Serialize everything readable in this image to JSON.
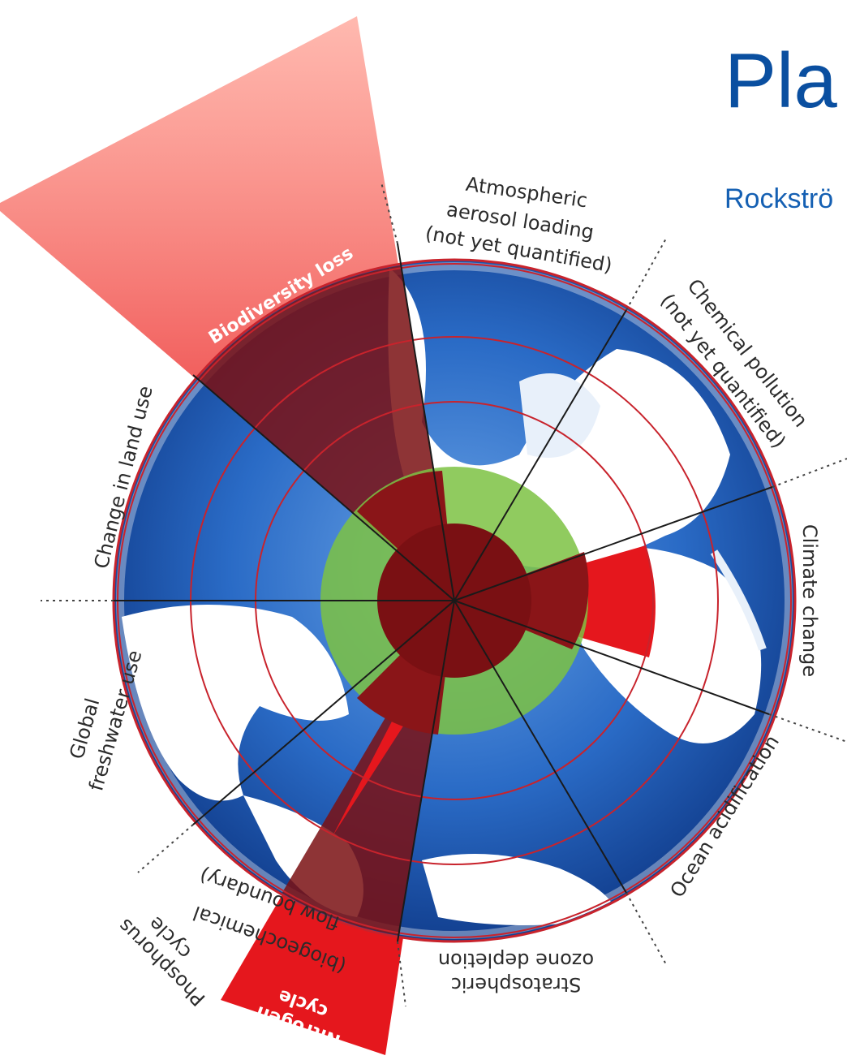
{
  "header": {
    "title": "Pla",
    "subtitle": "Rockströ"
  },
  "labels": {
    "aerosol": [
      "Atmospheric",
      "aerosol loading",
      "(not yet quantified)"
    ],
    "chemical": [
      "Chemical pollution",
      "(not yet quantified)"
    ],
    "climate": [
      "Climate change"
    ],
    "ocean": [
      "Ocean acidification"
    ],
    "ozone": [
      "Stratospheric",
      "ozone depletion"
    ],
    "nitrogen": [
      "Nitrogen",
      "cycle",
      "(biogeochemical",
      "flow boundary)"
    ],
    "phosphorus": [
      "Phosphorus",
      "cycle"
    ],
    "freshwater": [
      "Global",
      "freshwater use"
    ],
    "landuse": [
      "Change in land use"
    ],
    "biodiversity": [
      "Biodiversity loss"
    ]
  },
  "colors": {
    "ocean": "#1f5fb8",
    "land": "#ffffff",
    "safe_zone": "#7cc243",
    "exceeded": "#e5171d",
    "exceeded_dark": "#7a1013",
    "ring": "#c8232c",
    "title": "#0a4fa0"
  },
  "icons": [
    "globe-background",
    "safe-operating-space"
  ]
}
